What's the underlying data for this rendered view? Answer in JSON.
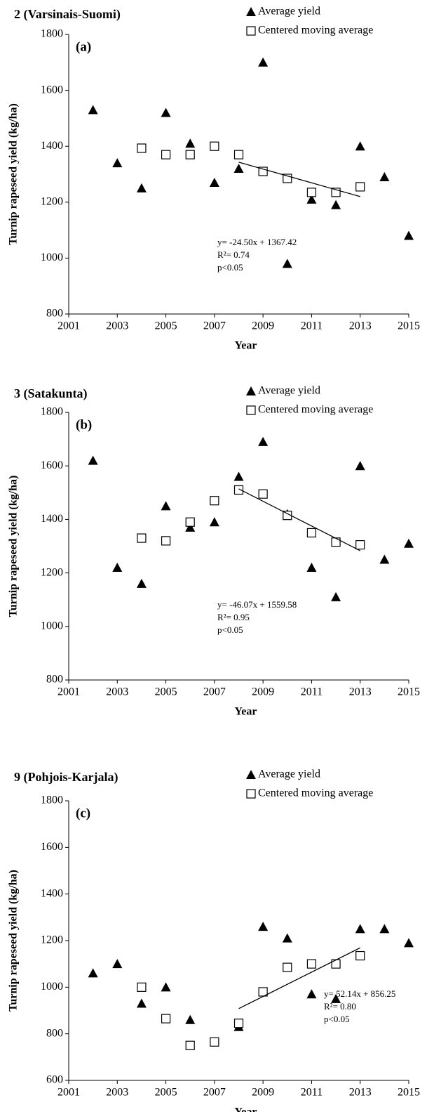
{
  "chart_data": [
    {
      "type": "scatter",
      "title": "2 (Varsinais-Suomi)",
      "panel_label": "(a)",
      "xlabel": "Year",
      "ylabel": "Turnip rapeseed yield (kg/ha)",
      "xlim": [
        2001,
        2015
      ],
      "xticks": [
        2001,
        2003,
        2005,
        2007,
        2009,
        2011,
        2013,
        2015
      ],
      "ylim": [
        800,
        1800
      ],
      "yticks": [
        800,
        1000,
        1200,
        1400,
        1600,
        1800
      ],
      "series": [
        {
          "name": "Average yield",
          "marker": "triangle",
          "color": "#000000",
          "x": [
            2002,
            2003,
            2004,
            2005,
            2006,
            2007,
            2008,
            2009,
            2010,
            2011,
            2012,
            2013,
            2014,
            2015
          ],
          "values": [
            1530,
            1340,
            1250,
            1520,
            1410,
            1270,
            1320,
            1700,
            980,
            1210,
            1190,
            1400,
            1290,
            1080
          ]
        },
        {
          "name": "Centered moving average",
          "marker": "square",
          "color": "#000000",
          "x": [
            2004,
            2005,
            2006,
            2007,
            2008,
            2009,
            2010,
            2011,
            2012,
            2013
          ],
          "values": [
            1393,
            1370,
            1370,
            1400,
            1370,
            1310,
            1285,
            1235,
            1235,
            1255
          ]
        }
      ],
      "trendline": {
        "x": [
          2008,
          2013
        ],
        "values": [
          1343,
          1220
        ]
      },
      "annotations": [
        "y= -24.50x + 1367.42",
        "R²= 0.74",
        "p<0.05"
      ]
    },
    {
      "type": "scatter",
      "title": "3 (Satakunta)",
      "panel_label": "(b)",
      "xlabel": "Year",
      "ylabel": "Turnip rapeseed yield (kg/ha)",
      "xlim": [
        2001,
        2015
      ],
      "xticks": [
        2001,
        2003,
        2005,
        2007,
        2009,
        2011,
        2013,
        2015
      ],
      "ylim": [
        800,
        1800
      ],
      "yticks": [
        800,
        1000,
        1200,
        1400,
        1600,
        1800
      ],
      "series": [
        {
          "name": "Average yield",
          "marker": "triangle",
          "color": "#000000",
          "x": [
            2002,
            2003,
            2004,
            2005,
            2006,
            2007,
            2008,
            2009,
            2010,
            2011,
            2012,
            2013,
            2014,
            2015
          ],
          "values": [
            1620,
            1220,
            1160,
            1450,
            1370,
            1390,
            1560,
            1690,
            1420,
            1220,
            1110,
            1600,
            1250,
            1310
          ]
        },
        {
          "name": "Centered moving average",
          "marker": "square",
          "color": "#000000",
          "x": [
            2004,
            2005,
            2006,
            2007,
            2008,
            2009,
            2010,
            2011,
            2012,
            2013
          ],
          "values": [
            1330,
            1320,
            1390,
            1470,
            1510,
            1495,
            1415,
            1350,
            1315,
            1305
          ]
        }
      ],
      "trendline": {
        "x": [
          2008,
          2013
        ],
        "values": [
          1514,
          1283
        ]
      },
      "annotations": [
        "y= -46.07x + 1559.58",
        "R²= 0.95",
        "p<0.05"
      ]
    },
    {
      "type": "scatter",
      "title": "9 (Pohjois-Karjala)",
      "panel_label": "(c)",
      "xlabel": "Year",
      "ylabel": "Turnip rapeseed yield (kg/ha)",
      "xlim": [
        2001,
        2015
      ],
      "xticks": [
        2001,
        2003,
        2005,
        2007,
        2009,
        2011,
        2013,
        2015
      ],
      "ylim": [
        600,
        1800
      ],
      "yticks": [
        600,
        800,
        1000,
        1200,
        1400,
        1600,
        1800
      ],
      "series": [
        {
          "name": "Average yield",
          "marker": "triangle",
          "color": "#000000",
          "x": [
            2002,
            2003,
            2004,
            2005,
            2006,
            2008,
            2009,
            2010,
            2011,
            2012,
            2013,
            2014,
            2015
          ],
          "values": [
            1060,
            1100,
            930,
            1000,
            860,
            830,
            1260,
            1210,
            970,
            950,
            1250,
            1250,
            1190
          ]
        },
        {
          "name": "Centered moving average",
          "marker": "square",
          "color": "#000000",
          "x": [
            2004,
            2005,
            2006,
            2007,
            2008,
            2009,
            2010,
            2011,
            2012,
            2013
          ],
          "values": [
            1000,
            865,
            750,
            765,
            845,
            980,
            1085,
            1100,
            1100,
            1135
          ]
        }
      ],
      "trendline": {
        "x": [
          2008,
          2013
        ],
        "values": [
          908,
          1169
        ]
      },
      "annotations": [
        "y= 52.14x + 856.25",
        "R²= 0.80",
        "p<0.05"
      ]
    }
  ]
}
